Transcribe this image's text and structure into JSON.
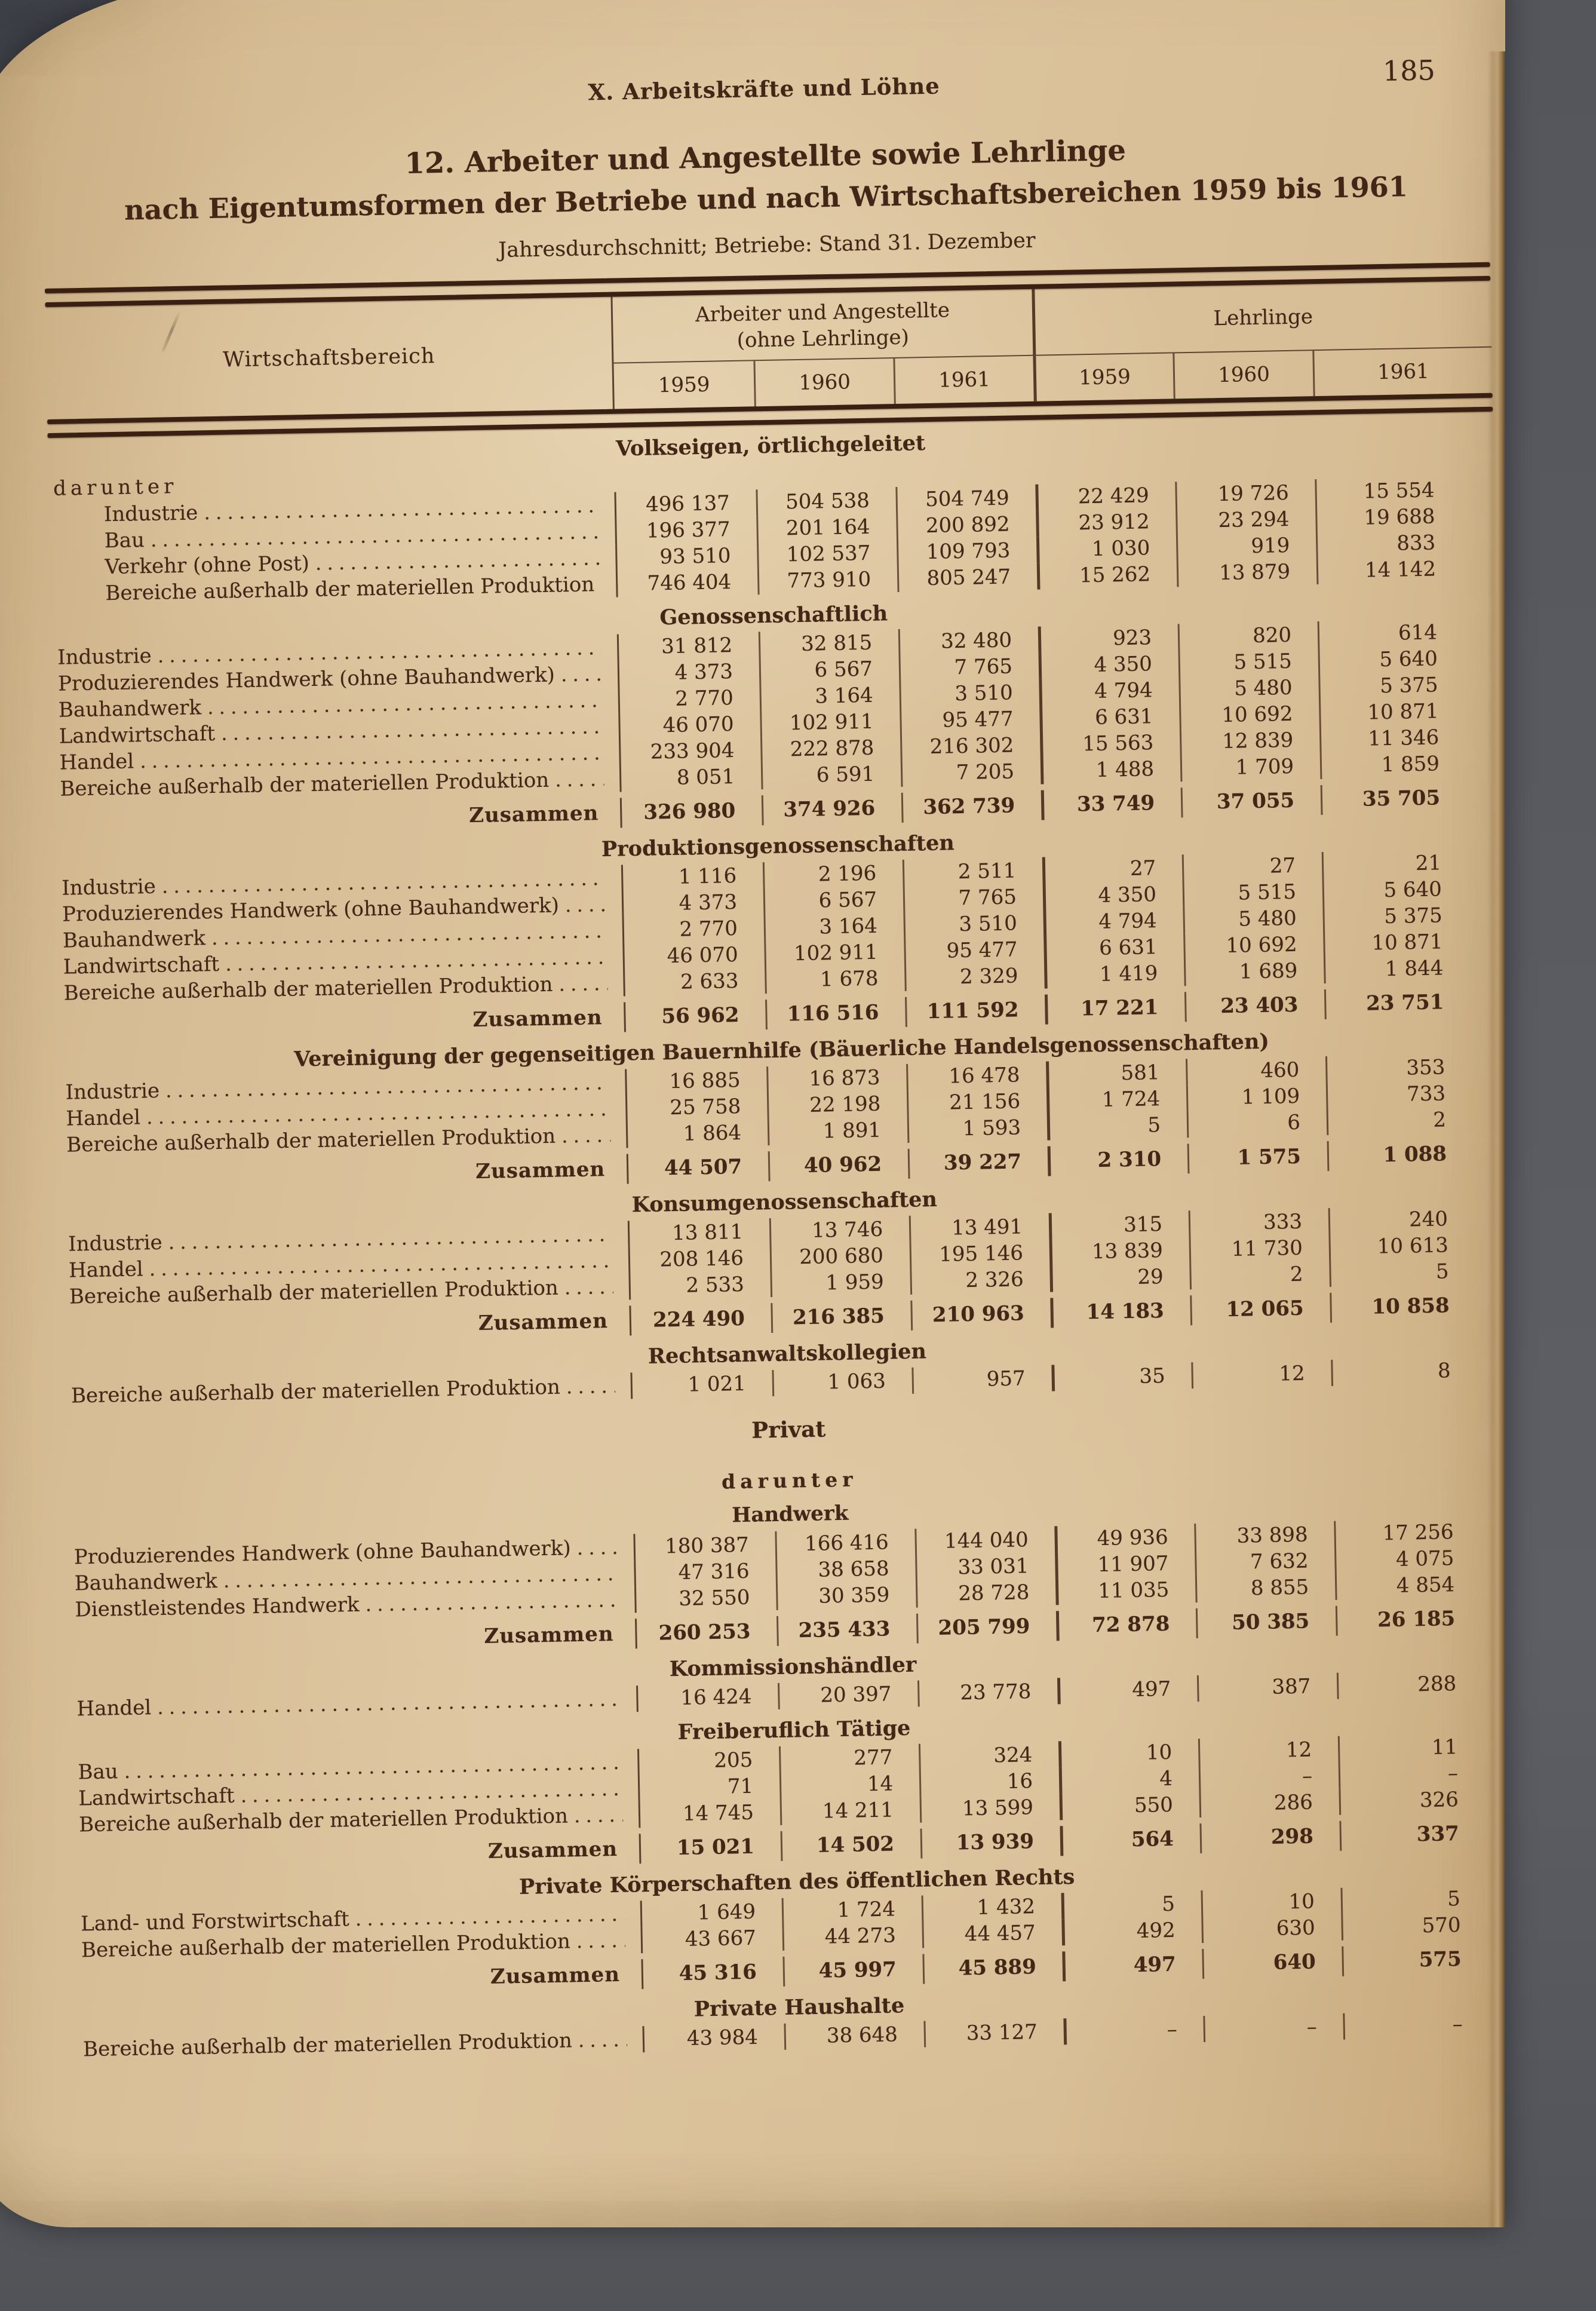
{
  "page": {
    "header": "X. Arbeitskräfte und Löhne",
    "page_number": "185",
    "title_line1": "12. Arbeiter und Angestellte sowie Lehrlinge",
    "title_line2": "nach Eigentumsformen der Betriebe und nach Wirtschaftsbereichen 1959 bis 1961",
    "subtitle": "Jahresdurchschnitt; Betriebe: Stand 31. Dezember"
  },
  "colors": {
    "paper": "#d8be96",
    "ink": "#422616",
    "scan_background": "#56585e"
  },
  "table": {
    "col_label_header": "Wirtschaftsbereich",
    "group1_line1": "Arbeiter und Angestellte",
    "group1_line2": "(ohne Lehrlinge)",
    "group2_header": "Lehrlinge",
    "years": [
      "1959",
      "1960",
      "1961",
      "1959",
      "1960",
      "1961"
    ],
    "zusammen_label": "Zusammen",
    "sections": [
      {
        "title": "Volkseigen, örtlichgeleitet",
        "pre_label": "darunter",
        "indent_rows": true,
        "rows": [
          {
            "label": "Industrie",
            "values": [
              "496 137",
              "504 538",
              "504 749",
              "22 429",
              "19 726",
              "15 554"
            ]
          },
          {
            "label": "Bau",
            "values": [
              "196 377",
              "201 164",
              "200 892",
              "23 912",
              "23 294",
              "19 688"
            ]
          },
          {
            "label": "Verkehr (ohne Post)",
            "values": [
              "93 510",
              "102 537",
              "109 793",
              "1 030",
              "919",
              "833"
            ]
          },
          {
            "label": "Bereiche außerhalb der materiellen Produktion",
            "values": [
              "746 404",
              "773 910",
              "805 247",
              "15 262",
              "13 879",
              "14 142"
            ]
          }
        ],
        "zusammen": null
      },
      {
        "title": "Genossenschaftlich",
        "rows": [
          {
            "label": "Industrie",
            "values": [
              "31 812",
              "32 815",
              "32 480",
              "923",
              "820",
              "614"
            ]
          },
          {
            "label": "Produzierendes Handwerk (ohne Bauhandwerk)",
            "values": [
              "4 373",
              "6 567",
              "7 765",
              "4 350",
              "5 515",
              "5 640"
            ]
          },
          {
            "label": "Bauhandwerk",
            "values": [
              "2 770",
              "3 164",
              "3 510",
              "4 794",
              "5 480",
              "5 375"
            ]
          },
          {
            "label": "Landwirtschaft",
            "values": [
              "46 070",
              "102 911",
              "95 477",
              "6 631",
              "10 692",
              "10 871"
            ]
          },
          {
            "label": "Handel",
            "values": [
              "233 904",
              "222 878",
              "216 302",
              "15 563",
              "12 839",
              "11 346"
            ]
          },
          {
            "label": "Bereiche außerhalb der materiellen Produktion",
            "values": [
              "8 051",
              "6 591",
              "7 205",
              "1 488",
              "1 709",
              "1 859"
            ]
          }
        ],
        "zusammen": [
          "326 980",
          "374 926",
          "362 739",
          "33 749",
          "37 055",
          "35 705"
        ]
      },
      {
        "title": "Produktionsgenossenschaften",
        "rows": [
          {
            "label": "Industrie",
            "values": [
              "1 116",
              "2 196",
              "2 511",
              "27",
              "27",
              "21"
            ]
          },
          {
            "label": "Produzierendes Handwerk (ohne Bauhandwerk)",
            "values": [
              "4 373",
              "6 567",
              "7 765",
              "4 350",
              "5 515",
              "5 640"
            ]
          },
          {
            "label": "Bauhandwerk",
            "values": [
              "2 770",
              "3 164",
              "3 510",
              "4 794",
              "5 480",
              "5 375"
            ]
          },
          {
            "label": "Landwirtschaft",
            "values": [
              "46 070",
              "102 911",
              "95 477",
              "6 631",
              "10 692",
              "10 871"
            ]
          },
          {
            "label": "Bereiche außerhalb der materiellen Produktion",
            "values": [
              "2 633",
              "1 678",
              "2 329",
              "1 419",
              "1 689",
              "1 844"
            ]
          }
        ],
        "zusammen": [
          "56 962",
          "116 516",
          "111 592",
          "17 221",
          "23 403",
          "23 751"
        ]
      },
      {
        "title": "Vereinigung der gegenseitigen Bauernhilfe (Bäuerliche Handelsgenossenschaften)",
        "rows": [
          {
            "label": "Industrie",
            "values": [
              "16 885",
              "16 873",
              "16 478",
              "581",
              "460",
              "353"
            ]
          },
          {
            "label": "Handel",
            "values": [
              "25 758",
              "22 198",
              "21 156",
              "1 724",
              "1 109",
              "733"
            ]
          },
          {
            "label": "Bereiche außerhalb der materiellen Produktion",
            "values": [
              "1 864",
              "1 891",
              "1 593",
              "5",
              "6",
              "2"
            ]
          }
        ],
        "zusammen": [
          "44 507",
          "40 962",
          "39 227",
          "2 310",
          "1 575",
          "1 088"
        ]
      },
      {
        "title": "Konsumgenossenschaften",
        "rows": [
          {
            "label": "Industrie",
            "values": [
              "13 811",
              "13 746",
              "13 491",
              "315",
              "333",
              "240"
            ]
          },
          {
            "label": "Handel",
            "values": [
              "208 146",
              "200 680",
              "195 146",
              "13 839",
              "11 730",
              "10 613"
            ]
          },
          {
            "label": "Bereiche außerhalb der materiellen Produktion",
            "values": [
              "2 533",
              "1 959",
              "2 326",
              "29",
              "2",
              "5"
            ]
          }
        ],
        "zusammen": [
          "224 490",
          "216 385",
          "210 963",
          "14 183",
          "12 065",
          "10 858"
        ]
      },
      {
        "title": "Rechtsanwaltskollegien",
        "rows": [
          {
            "label": "Bereiche außerhalb der materiellen Produktion",
            "values": [
              "1 021",
              "1 063",
              "957",
              "35",
              "12",
              "8"
            ]
          }
        ],
        "zusammen": null
      },
      {
        "title": "Privat",
        "subtitle1": "darunter",
        "subtitle2": "Handwerk",
        "rows": [
          {
            "label": "Produzierendes Handwerk (ohne Bauhandwerk)",
            "values": [
              "180 387",
              "166 416",
              "144 040",
              "49 936",
              "33 898",
              "17 256"
            ]
          },
          {
            "label": "Bauhandwerk",
            "values": [
              "47 316",
              "38 658",
              "33 031",
              "11 907",
              "7 632",
              "4 075"
            ]
          },
          {
            "label": "Dienstleistendes Handwerk",
            "values": [
              "32 550",
              "30 359",
              "28 728",
              "11 035",
              "8 855",
              "4 854"
            ]
          }
        ],
        "zusammen": [
          "260 253",
          "235 433",
          "205 799",
          "72 878",
          "50 385",
          "26 185"
        ]
      },
      {
        "title": "Kommissionshändler",
        "rows": [
          {
            "label": "Handel",
            "values": [
              "16 424",
              "20 397",
              "23 778",
              "497",
              "387",
              "288"
            ]
          }
        ],
        "zusammen": null
      },
      {
        "title": "Freiberuflich Tätige",
        "rows": [
          {
            "label": "Bau",
            "values": [
              "205",
              "277",
              "324",
              "10",
              "12",
              "11"
            ]
          },
          {
            "label": "Landwirtschaft",
            "values": [
              "71",
              "14",
              "16",
              "4",
              "–",
              "–"
            ]
          },
          {
            "label": "Bereiche außerhalb der materiellen Produktion",
            "values": [
              "14 745",
              "14 211",
              "13 599",
              "550",
              "286",
              "326"
            ]
          }
        ],
        "zusammen": [
          "15 021",
          "14 502",
          "13 939",
          "564",
          "298",
          "337"
        ]
      },
      {
        "title": "Private Körperschaften des öffentlichen Rechts",
        "rows": [
          {
            "label": "Land- und Forstwirtschaft",
            "values": [
              "1 649",
              "1 724",
              "1 432",
              "5",
              "10",
              "5"
            ]
          },
          {
            "label": "Bereiche außerhalb der materiellen Produktion",
            "values": [
              "43 667",
              "44 273",
              "44 457",
              "492",
              "630",
              "570"
            ]
          }
        ],
        "zusammen": [
          "45 316",
          "45 997",
          "45 889",
          "497",
          "640",
          "575"
        ]
      },
      {
        "title": "Private Haushalte",
        "rows": [
          {
            "label": "Bereiche außerhalb der materiellen Produktion",
            "values": [
              "43 984",
              "38 648",
              "33 127",
              "–",
              "–",
              "–"
            ]
          }
        ],
        "zusammen": null
      }
    ]
  }
}
